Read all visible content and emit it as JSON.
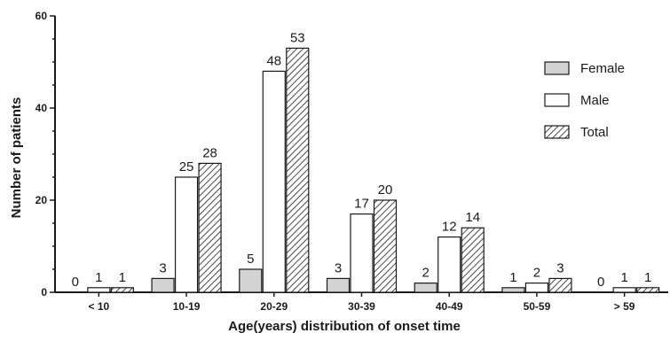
{
  "chart_data": {
    "type": "bar",
    "xlabel": "Age(years) distribution of onset time",
    "ylabel": "Number of patients",
    "categories": [
      "< 10",
      "10-19",
      "20-29",
      "30-39",
      "40-49",
      "50-59",
      "> 59"
    ],
    "series": [
      {
        "name": "Female",
        "values": [
          0,
          3,
          5,
          3,
          2,
          1,
          0
        ],
        "fill": "#d3d3d3",
        "pattern": "solid"
      },
      {
        "name": "Male",
        "values": [
          1,
          25,
          48,
          17,
          12,
          2,
          1
        ],
        "fill": "#ffffff",
        "pattern": "solid"
      },
      {
        "name": "Total",
        "values": [
          1,
          28,
          53,
          20,
          14,
          3,
          1
        ],
        "fill": "#ffffff",
        "pattern": "hatch"
      }
    ],
    "ylim": [
      0,
      60
    ],
    "yticks": [
      0,
      20,
      40,
      60
    ],
    "yticks_minor_step": 5,
    "legend_position": "top-right",
    "grid": false,
    "bar_stroke": "#1a1a1a"
  }
}
